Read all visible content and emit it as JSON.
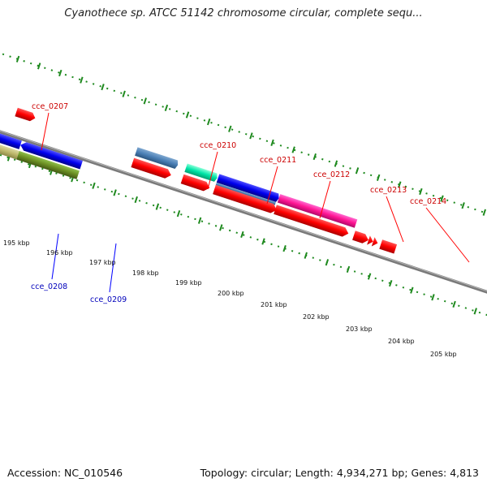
{
  "title": "Cyanothece sp. ATCC 51142 chromosome circular, complete sequ...",
  "footer": {
    "accession": "Accession: NC_010546",
    "stats": "Topology: circular; Length: 4,934,271 bp; Genes: 4,813"
  },
  "axis": {
    "tick_labels": [
      "195 kbp",
      "196 kbp",
      "197 kbp",
      "198 kbp",
      "199 kbp",
      "200 kbp",
      "201 kbp",
      "202 kbp",
      "203 kbp",
      "204 kbp",
      "205 kbp"
    ]
  },
  "colors": {
    "backbone": "#808080",
    "dots": "#1f8a1f",
    "red_label": "#cc0000",
    "blue_label": "#0000bb",
    "leader_red": "#ff0000",
    "leader_blue": "#0000ff"
  },
  "gene_labels": {
    "outer": [
      "cce_0207",
      "cce_0210",
      "cce_0211",
      "cce_0212",
      "cce_0213",
      "cce_0214"
    ],
    "inner": [
      "cce_0208",
      "cce_0209"
    ]
  }
}
